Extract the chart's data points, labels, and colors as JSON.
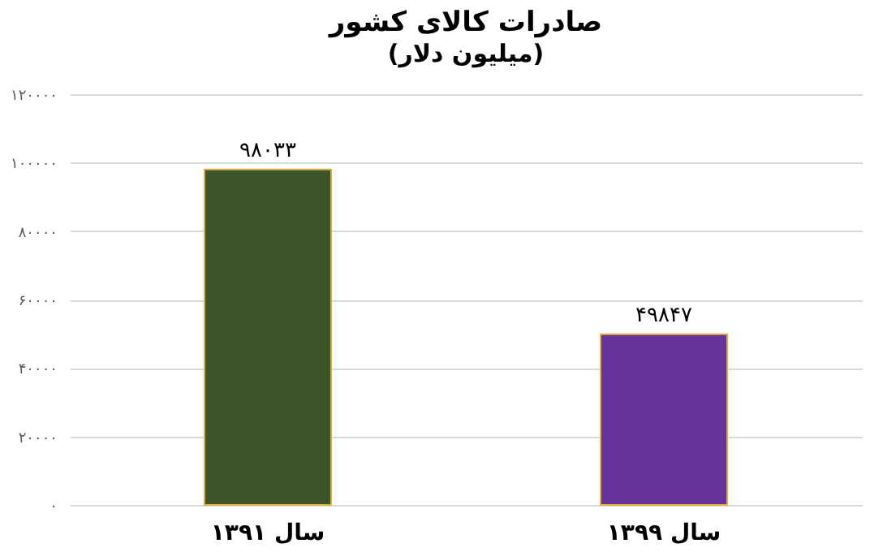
{
  "chart_data": {
    "type": "bar",
    "title": "صادرات کالای کشور",
    "subtitle": "(میلیون دلار)",
    "categories": [
      "سال ۱۳۹۱",
      "سال ۱۳۹۹"
    ],
    "values": [
      98033,
      49847
    ],
    "colors": [
      "#3e5529",
      "#663399"
    ],
    "value_labels": [
      "۹۸۰۳۳",
      "۴۹۸۴۷"
    ],
    "ylim": [
      0,
      120000
    ],
    "yticks": [
      {
        "value": 0,
        "label": "۰"
      },
      {
        "value": 20000,
        "label": "۲۰۰۰۰"
      },
      {
        "value": 40000,
        "label": "۴۰۰۰۰"
      },
      {
        "value": 60000,
        "label": "۶۰۰۰۰"
      },
      {
        "value": 80000,
        "label": "۸۰۰۰۰"
      },
      {
        "value": 100000,
        "label": "۱۰۰۰۰۰"
      },
      {
        "value": 120000,
        "label": "۱۲۰۰۰۰"
      }
    ],
    "grid": "y"
  }
}
